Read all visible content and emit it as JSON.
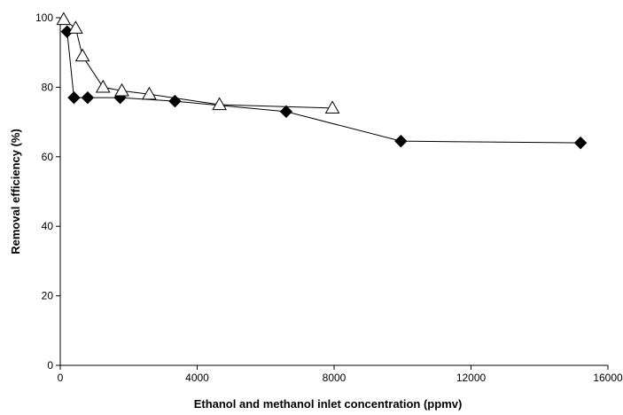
{
  "chart_data": {
    "type": "scatter",
    "title": "",
    "xlabel": "Ethanol and methanol inlet concentration (ppmv)",
    "ylabel": "Removal efficiency (%)",
    "xlim": [
      0,
      16000
    ],
    "ylim": [
      0,
      100
    ],
    "x_ticks": [
      0,
      4000,
      8000,
      12000,
      16000
    ],
    "y_ticks": [
      0,
      20,
      40,
      60,
      80,
      100
    ],
    "grid": false,
    "legend": "none",
    "series": [
      {
        "marker": "filled-diamond",
        "color": "#000000",
        "points": [
          {
            "x": 200,
            "y": 96
          },
          {
            "x": 400,
            "y": 77
          },
          {
            "x": 800,
            "y": 77
          },
          {
            "x": 1750,
            "y": 77
          },
          {
            "x": 3350,
            "y": 76
          },
          {
            "x": 6600,
            "y": 73
          },
          {
            "x": 9950,
            "y": 64.5
          },
          {
            "x": 15200,
            "y": 64
          }
        ]
      },
      {
        "marker": "open-triangle",
        "color": "#000000",
        "points": [
          {
            "x": 100,
            "y": 99.5
          },
          {
            "x": 450,
            "y": 97
          },
          {
            "x": 650,
            "y": 89
          },
          {
            "x": 1250,
            "y": 80
          },
          {
            "x": 1800,
            "y": 79
          },
          {
            "x": 2600,
            "y": 78
          },
          {
            "x": 4650,
            "y": 75
          },
          {
            "x": 7950,
            "y": 74
          }
        ]
      }
    ]
  }
}
